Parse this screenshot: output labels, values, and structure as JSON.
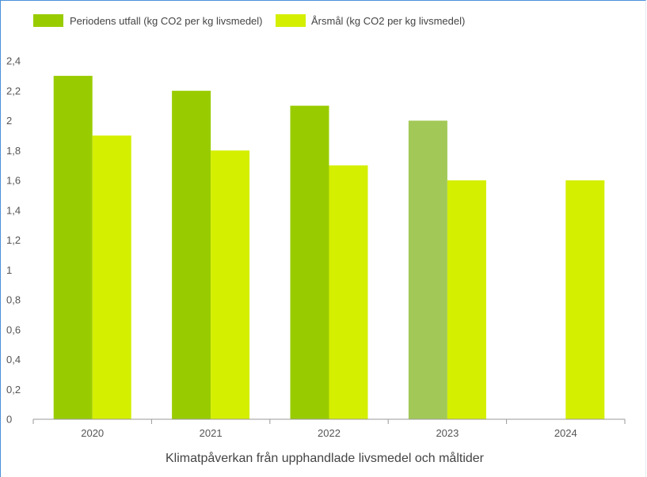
{
  "chart_data": {
    "type": "bar",
    "categories": [
      "2020",
      "2021",
      "2022",
      "2023",
      "2024"
    ],
    "series": [
      {
        "name": "Periodens utfall (kg CO2 per kg livsmedel)",
        "color": "#99cc00",
        "values": [
          2.3,
          2.2,
          2.1,
          2.0,
          null
        ],
        "point_colors": [
          "#99cc00",
          "#99cc00",
          "#99cc00",
          "#a2c957",
          "#99cc00"
        ]
      },
      {
        "name": "Årsmål (kg CO2 per kg livsmedel)",
        "color": "#d4ef00",
        "values": [
          1.9,
          1.8,
          1.7,
          1.6,
          1.6
        ]
      }
    ],
    "yticks": [
      "0",
      "0,2",
      "0,4",
      "0,6",
      "0,8",
      "1",
      "1,2",
      "1,4",
      "1,6",
      "1,8",
      "2",
      "2,2",
      "2,4"
    ],
    "ylim": [
      0,
      2.4
    ],
    "xlabel": "Klimatpåverkan från upphandlade livsmedel och måltider",
    "ylabel": "",
    "legend_position": "top-left",
    "grid": false
  }
}
